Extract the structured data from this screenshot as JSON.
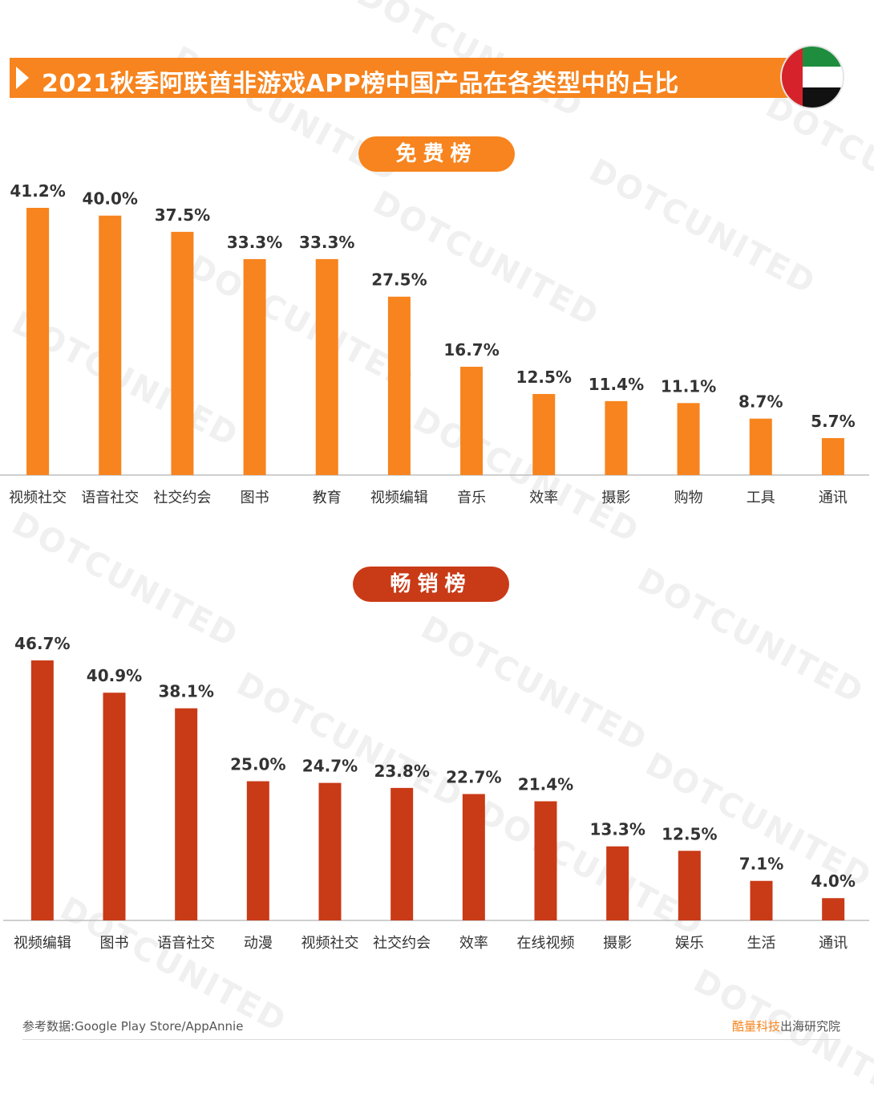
{
  "title": "2021秋季阿联酋非游戏APP榜中国产品在各类型中的占比",
  "colors": {
    "orange": "#f7841e",
    "red": "#c93a17",
    "flag_red": "#d6222a",
    "flag_green": "#1e8e3e"
  },
  "watermark_text": "DOTCUNITED",
  "flag_icon": "uae-flag-icon",
  "chart_data": [
    {
      "type": "bar",
      "title": "免费榜",
      "categories": [
        "视频社交",
        "语音社交",
        "社交约会",
        "图书",
        "教育",
        "视频编辑",
        "音乐",
        "效率",
        "摄影",
        "购物",
        "工具",
        "通讯"
      ],
      "values": [
        41.2,
        40.0,
        37.5,
        33.3,
        33.3,
        27.5,
        16.7,
        12.5,
        11.4,
        11.1,
        8.7,
        5.7
      ],
      "labels": [
        "41.2%",
        "40.0%",
        "37.5%",
        "33.3%",
        "33.3%",
        "27.5%",
        "16.7%",
        "12.5%",
        "11.4%",
        "11.1%",
        "8.7%",
        "5.7%"
      ],
      "ylim": [
        0,
        41.2
      ],
      "grid": false,
      "color": "#f7841e"
    },
    {
      "type": "bar",
      "title": "畅销榜",
      "categories": [
        "视频编辑",
        "图书",
        "语音社交",
        "动漫",
        "视频社交",
        "社交约会",
        "效率",
        "在线视频",
        "摄影",
        "娱乐",
        "生活",
        "通讯"
      ],
      "values": [
        46.7,
        40.9,
        38.1,
        25.0,
        24.7,
        23.8,
        22.7,
        21.4,
        13.3,
        12.5,
        7.1,
        4.0
      ],
      "labels": [
        "46.7%",
        "40.9%",
        "38.1%",
        "25.0%",
        "24.7%",
        "23.8%",
        "22.7%",
        "21.4%",
        "13.3%",
        "12.5%",
        "7.1%",
        "4.0%"
      ],
      "ylim": [
        0,
        46.7
      ],
      "grid": false,
      "color": "#c93a17"
    }
  ],
  "footer": {
    "source": "参考数据:Google Play Store/AppAnnie",
    "brand_accent": "酷量科技",
    "brand_rest": "出海研究院"
  }
}
